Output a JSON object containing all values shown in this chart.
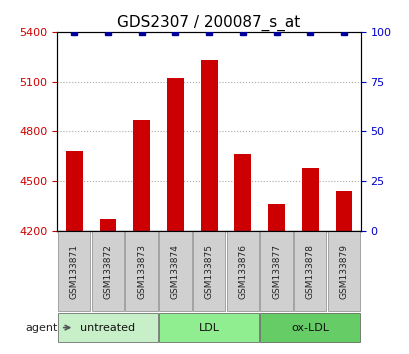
{
  "title": "GDS2307 / 200087_s_at",
  "samples": [
    "GSM133871",
    "GSM133872",
    "GSM133873",
    "GSM133874",
    "GSM133875",
    "GSM133876",
    "GSM133877",
    "GSM133878",
    "GSM133879"
  ],
  "counts": [
    4680,
    4270,
    4870,
    5120,
    5230,
    4660,
    4360,
    4580,
    4440
  ],
  "percentiles": [
    100,
    100,
    100,
    100,
    100,
    100,
    100,
    100,
    100
  ],
  "ylim_left": [
    4200,
    5400
  ],
  "ylim_right": [
    0,
    100
  ],
  "yticks_left": [
    4200,
    4500,
    4800,
    5100,
    5400
  ],
  "yticks_right": [
    0,
    25,
    50,
    75,
    100
  ],
  "groups": [
    {
      "label": "untreated",
      "start": 0,
      "end": 3,
      "color": "#c8f0c8"
    },
    {
      "label": "LDL",
      "start": 3,
      "end": 6,
      "color": "#90ee90"
    },
    {
      "label": "ox-LDL",
      "start": 6,
      "end": 9,
      "color": "#66cc66"
    }
  ],
  "bar_color": "#cc0000",
  "dot_color": "#000099",
  "sample_box_color": "#d0d0d0",
  "sample_box_edge": "#888888",
  "bar_width": 0.5,
  "agent_label": "agent",
  "legend_count_color": "#cc0000",
  "legend_pct_color": "#000099",
  "left_tick_color": "#cc0000",
  "right_tick_color": "#0000cc",
  "grid_style": "dotted",
  "grid_color": "#aaaaaa"
}
